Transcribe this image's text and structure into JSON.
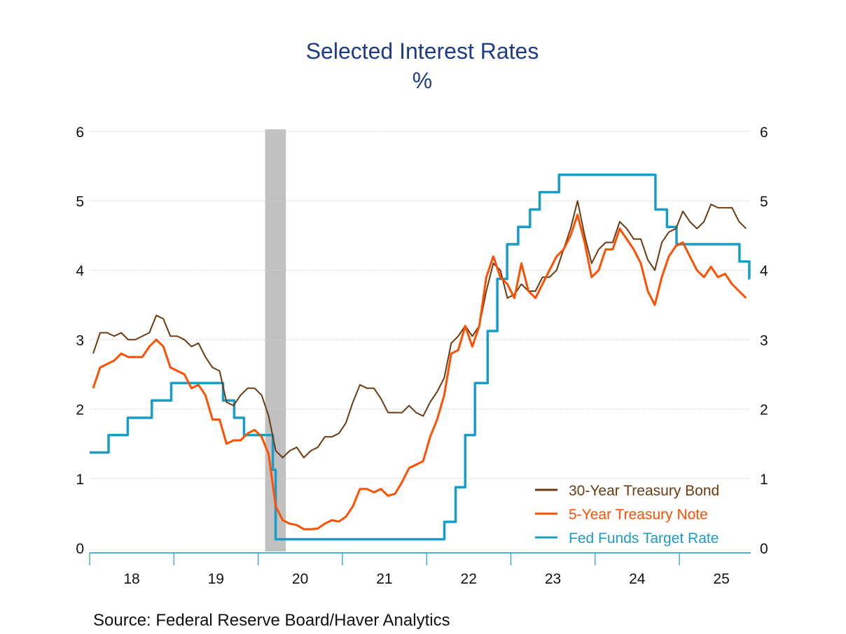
{
  "chart_data": {
    "type": "line",
    "title": "Selected Interest Rates",
    "subtitle": "%",
    "xlabel": "",
    "ylabel": "",
    "ylim": [
      0,
      6
    ],
    "xlim": [
      "2018-01-01",
      "2025-11-01"
    ],
    "y_ticks": [
      "0",
      "1",
      "2",
      "3",
      "4",
      "5",
      "6"
    ],
    "x_tick_labels": [
      "18",
      "19",
      "20",
      "21",
      "22",
      "23",
      "24",
      "25"
    ],
    "grid": true,
    "legend_position": "bottom-right",
    "recession_shading": {
      "start": "2020-02-01",
      "end": "2020-04-30",
      "color": "#c0c0c0"
    },
    "series": [
      {
        "name": "30-Year Treasury Bond",
        "color": "#6b3a10",
        "frequency": "monthly",
        "start": "2018-01",
        "values": [
          2.8,
          3.1,
          3.1,
          3.05,
          3.1,
          3.0,
          3.0,
          3.05,
          3.1,
          3.35,
          3.3,
          3.05,
          3.05,
          3.0,
          2.9,
          2.95,
          2.75,
          2.6,
          2.55,
          2.1,
          2.05,
          2.2,
          2.3,
          2.3,
          2.2,
          1.9,
          1.4,
          1.3,
          1.4,
          1.45,
          1.3,
          1.4,
          1.45,
          1.6,
          1.6,
          1.65,
          1.8,
          2.1,
          2.35,
          2.3,
          2.3,
          2.15,
          1.95,
          1.95,
          1.95,
          2.05,
          1.95,
          1.9,
          2.1,
          2.25,
          2.45,
          2.95,
          3.05,
          3.2,
          3.05,
          3.2,
          3.7,
          4.1,
          4.0,
          3.6,
          3.65,
          3.8,
          3.7,
          3.7,
          3.9,
          3.9,
          4.0,
          4.3,
          4.6,
          5.0,
          4.5,
          4.1,
          4.3,
          4.4,
          4.4,
          4.7,
          4.6,
          4.45,
          4.45,
          4.15,
          4.0,
          4.4,
          4.55,
          4.6,
          4.85,
          4.7,
          4.6,
          4.7,
          4.95,
          4.9,
          4.9,
          4.9,
          4.7,
          4.6
        ]
      },
      {
        "name": "5-Year Treasury Note",
        "color": "#ff4f00",
        "frequency": "monthly",
        "start": "2018-01",
        "values": [
          2.3,
          2.6,
          2.65,
          2.7,
          2.8,
          2.75,
          2.75,
          2.75,
          2.9,
          3.0,
          2.9,
          2.6,
          2.55,
          2.5,
          2.3,
          2.35,
          2.2,
          1.85,
          1.85,
          1.5,
          1.55,
          1.55,
          1.65,
          1.7,
          1.6,
          1.35,
          0.6,
          0.4,
          0.35,
          0.33,
          0.27,
          0.27,
          0.28,
          0.35,
          0.4,
          0.38,
          0.45,
          0.6,
          0.85,
          0.85,
          0.8,
          0.85,
          0.75,
          0.78,
          0.95,
          1.15,
          1.2,
          1.25,
          1.6,
          1.85,
          2.2,
          2.8,
          2.85,
          3.2,
          2.9,
          3.2,
          3.9,
          4.2,
          3.9,
          3.8,
          3.6,
          4.1,
          3.7,
          3.6,
          3.8,
          4.0,
          4.2,
          4.3,
          4.5,
          4.8,
          4.4,
          3.9,
          4.0,
          4.3,
          4.3,
          4.6,
          4.45,
          4.3,
          4.1,
          3.7,
          3.5,
          3.9,
          4.2,
          4.35,
          4.4,
          4.2,
          4.0,
          3.9,
          4.05,
          3.9,
          3.95,
          3.8,
          3.7,
          3.6
        ]
      },
      {
        "name": "Fed Funds Target Rate",
        "color": "#1a9cc9",
        "frequency": "step",
        "steps": [
          [
            "2018-01-01",
            1.375
          ],
          [
            "2018-03-22",
            1.625
          ],
          [
            "2018-06-14",
            1.875
          ],
          [
            "2018-09-27",
            2.125
          ],
          [
            "2018-12-20",
            2.375
          ],
          [
            "2019-08-01",
            2.125
          ],
          [
            "2019-09-19",
            1.875
          ],
          [
            "2019-10-31",
            1.625
          ],
          [
            "2020-03-04",
            1.125
          ],
          [
            "2020-03-16",
            0.125
          ],
          [
            "2022-03-17",
            0.375
          ],
          [
            "2022-05-05",
            0.875
          ],
          [
            "2022-06-16",
            1.625
          ],
          [
            "2022-07-28",
            2.375
          ],
          [
            "2022-09-22",
            3.125
          ],
          [
            "2022-11-03",
            3.875
          ],
          [
            "2022-12-15",
            4.375
          ],
          [
            "2023-02-02",
            4.625
          ],
          [
            "2023-03-23",
            4.875
          ],
          [
            "2023-05-04",
            5.125
          ],
          [
            "2023-07-27",
            5.375
          ],
          [
            "2024-09-19",
            4.875
          ],
          [
            "2024-11-08",
            4.625
          ],
          [
            "2024-12-19",
            4.375
          ],
          [
            "2025-09-18",
            4.125
          ],
          [
            "2025-10-30",
            3.875
          ]
        ]
      }
    ]
  },
  "source": "Source:  Federal Reserve Board/Haver Analytics"
}
